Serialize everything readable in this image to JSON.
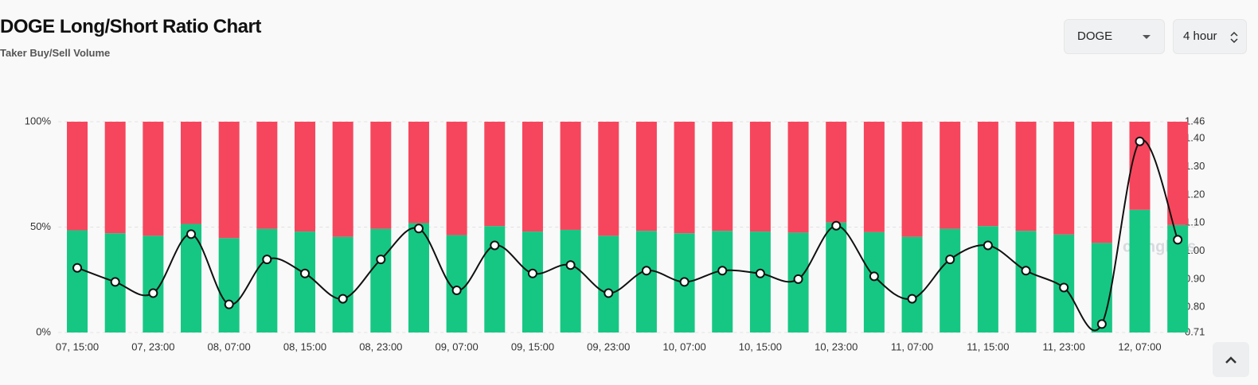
{
  "header": {
    "title": "DOGE Long/Short Ratio Chart",
    "subtitle": "Taker Buy/Sell Volume"
  },
  "controls": {
    "symbol": "DOGE",
    "interval": "4 hour"
  },
  "watermark": "coinglass",
  "chart_data": {
    "type": "stacked-bar-line",
    "categories": [
      "07, 15:00",
      null,
      "07, 23:00",
      null,
      "08, 07:00",
      null,
      "08, 15:00",
      null,
      "08, 23:00",
      null,
      "09, 07:00",
      null,
      "09, 15:00",
      null,
      "09, 23:00",
      null,
      "10, 07:00",
      null,
      "10, 15:00",
      null,
      "10, 23:00",
      null,
      "11, 07:00",
      null,
      "11, 15:00",
      null,
      "11, 23:00",
      null,
      "12, 07:00",
      null
    ],
    "series": [
      {
        "color": "#16c784",
        "values": [
          48.5,
          47.1,
          45.9,
          51.5,
          44.8,
          49.2,
          47.9,
          45.4,
          49.2,
          51.9,
          46.2,
          50.5,
          47.9,
          48.7,
          45.9,
          48.2,
          47.1,
          48.2,
          47.9,
          47.4,
          52.2,
          47.6,
          45.4,
          49.2,
          50.5,
          48.2,
          46.5,
          42.5,
          58.2,
          51.0
        ]
      },
      {
        "color": "#f6465d",
        "values": [
          51.5,
          52.9,
          54.1,
          48.5,
          55.2,
          50.8,
          52.1,
          54.6,
          50.8,
          48.1,
          53.8,
          49.5,
          52.1,
          51.3,
          54.1,
          51.8,
          52.9,
          51.8,
          52.1,
          52.6,
          47.8,
          52.4,
          54.6,
          50.8,
          49.5,
          51.8,
          53.5,
          57.5,
          41.8,
          49.0
        ]
      },
      {
        "color": "#111111",
        "axis": "y2",
        "values": [
          0.94,
          0.89,
          0.85,
          1.06,
          0.81,
          0.97,
          0.92,
          0.83,
          0.97,
          1.08,
          0.86,
          1.02,
          0.92,
          0.95,
          0.85,
          0.93,
          0.89,
          0.93,
          0.92,
          0.9,
          1.09,
          0.91,
          0.83,
          0.97,
          1.02,
          0.93,
          0.87,
          0.74,
          1.39,
          1.04
        ]
      }
    ],
    "ylim": [
      0,
      100
    ],
    "yticks": [
      {
        "value": 0,
        "label": "0%"
      },
      {
        "value": 50,
        "label": "50%"
      },
      {
        "value": 100,
        "label": "100%"
      }
    ],
    "y2lim": [
      0.71,
      1.46
    ],
    "y2ticks": [
      0.71,
      {
        "value": 0.8,
        "label": "0.80"
      },
      {
        "value": 0.9,
        "label": "0.90"
      },
      {
        "value": 1.0,
        "label": "1.00"
      },
      {
        "value": 1.1,
        "label": "1.10"
      },
      {
        "value": 1.2,
        "label": "1.20"
      },
      {
        "value": 1.3,
        "label": "1.30"
      },
      {
        "value": 1.4,
        "label": "1.40"
      },
      1.46
    ],
    "grid": true
  }
}
